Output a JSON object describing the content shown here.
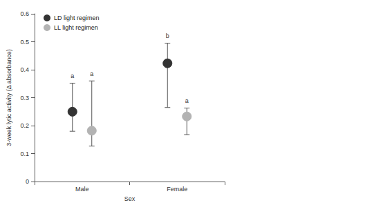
{
  "chart_data": {
    "type": "scatter",
    "x_label": "Sex",
    "y_label": "3-week lytic activity (Δ absorbance)",
    "categories": [
      "Male",
      "Female"
    ],
    "ylim": [
      0,
      0.6
    ],
    "yticks": [
      0,
      0.1,
      0.2,
      0.3,
      0.4,
      0.5,
      0.6
    ],
    "grid": false,
    "legend": "upper left",
    "marker": "circle",
    "series": [
      {
        "name": "LD light regimen",
        "color": "#333333",
        "values": [
          0.25,
          0.423
        ],
        "error_lower": [
          0.18,
          0.265
        ],
        "error_upper": [
          0.352,
          0.495
        ],
        "annotations": [
          "a",
          "b"
        ]
      },
      {
        "name": "LL light regimen",
        "color": "#b3b3b3",
        "values": [
          0.182,
          0.233
        ],
        "error_lower": [
          0.127,
          0.168
        ],
        "error_upper": [
          0.36,
          0.263
        ],
        "annotations": [
          "a",
          "a"
        ]
      }
    ]
  }
}
